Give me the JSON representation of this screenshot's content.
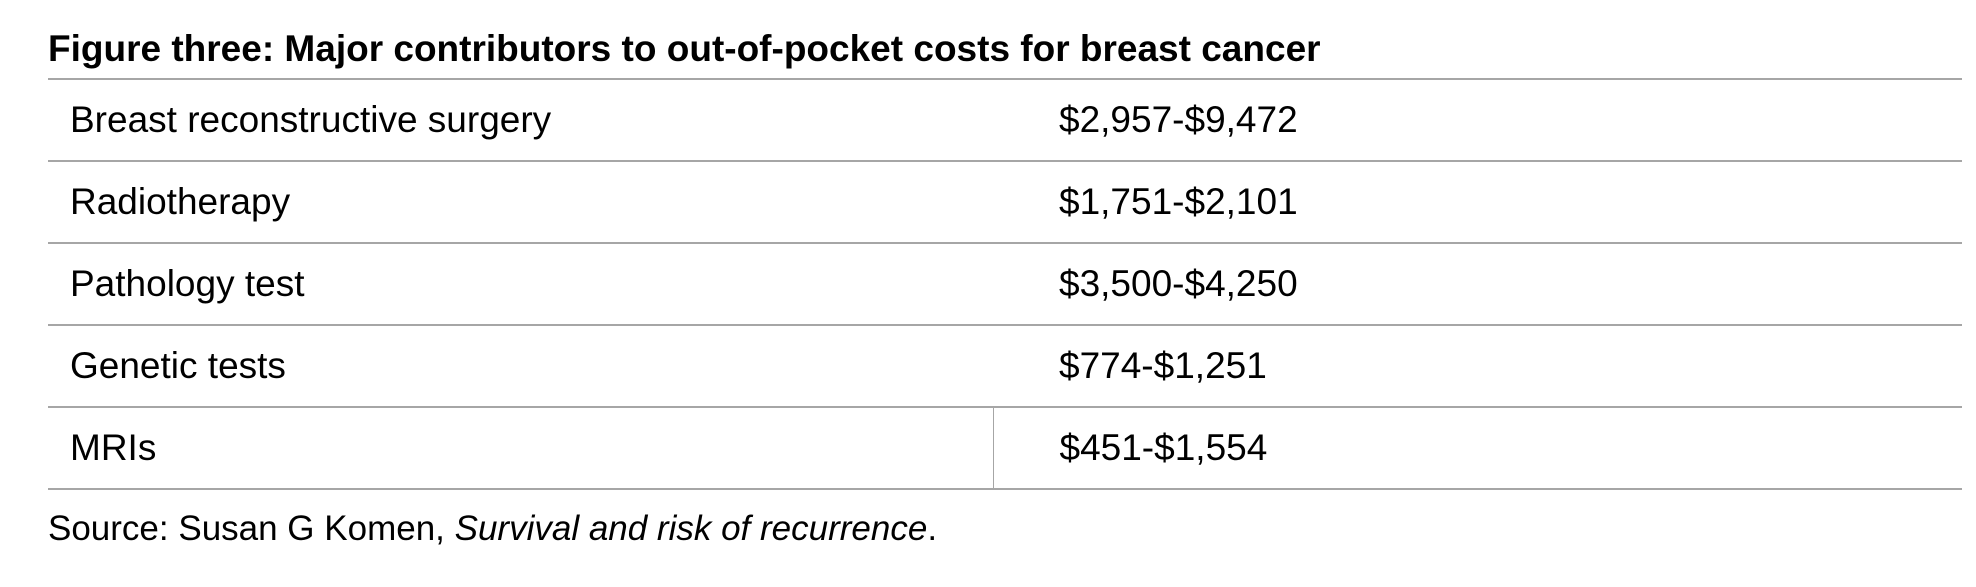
{
  "figure": {
    "title": "Figure three: Major contributors to out-of-pocket costs for breast cancer",
    "rows": [
      {
        "item": "Breast reconstructive surgery",
        "cost": "$2,957-$9,472"
      },
      {
        "item": "Radiotherapy",
        "cost": "$1,751-$2,101"
      },
      {
        "item": "Pathology test",
        "cost": "$3,500-$4,250"
      },
      {
        "item": "Genetic tests",
        "cost": "$774-$1,251"
      },
      {
        "item": "MRIs",
        "cost": "$451-$1,554"
      }
    ],
    "source": {
      "prefix": "Source: Susan G Komen, ",
      "title": "Survival and risk of recurrence",
      "suffix": "."
    }
  },
  "colors": {
    "rule": "#a6a6a6",
    "text": "#000000",
    "background": "#ffffff"
  }
}
